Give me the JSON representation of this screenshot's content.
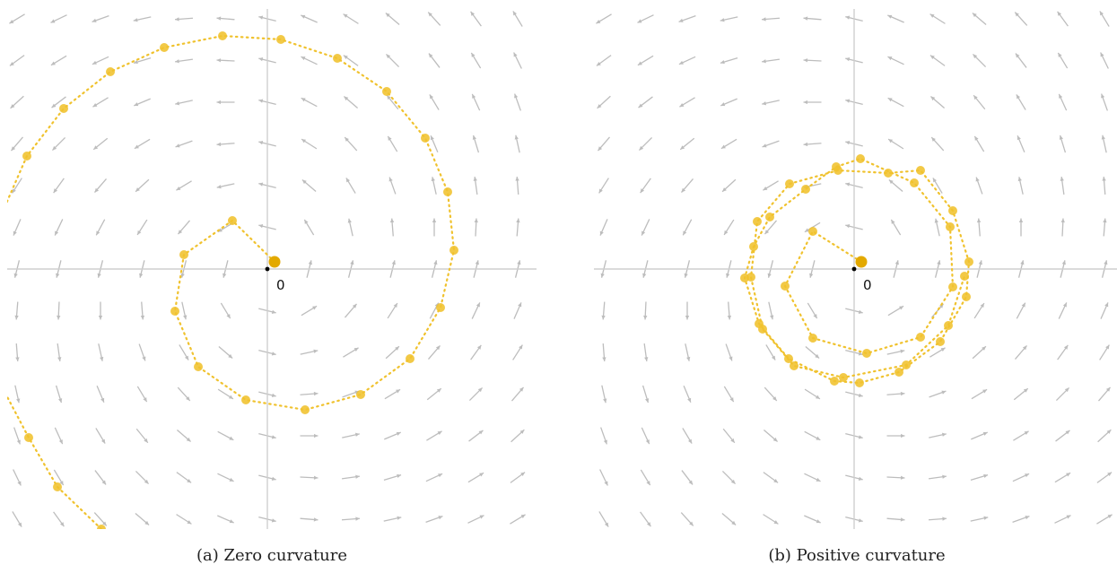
{
  "figure": {
    "colors": {
      "axis": "#cfcfcf",
      "arrow": "#bdbdbd",
      "trajectory": "#f0c22e",
      "trajectory_dots": "#f0c22e",
      "start_marker": "#e3a900",
      "origin_dot": "#000000"
    },
    "panels": [
      {
        "id": "a",
        "caption": "(a) Zero curvature",
        "origin_label": "0",
        "vector_field": "rotational (counter-clockwise)",
        "trajectory": "outward spiral of dots from the origin (zero curvature)"
      },
      {
        "id": "b",
        "caption": "(b) Positive curvature",
        "origin_label": "0",
        "vector_field": "rotational (counter-clockwise)",
        "trajectory": "bounded loop of dots around the origin (positive curvature)"
      }
    ]
  }
}
